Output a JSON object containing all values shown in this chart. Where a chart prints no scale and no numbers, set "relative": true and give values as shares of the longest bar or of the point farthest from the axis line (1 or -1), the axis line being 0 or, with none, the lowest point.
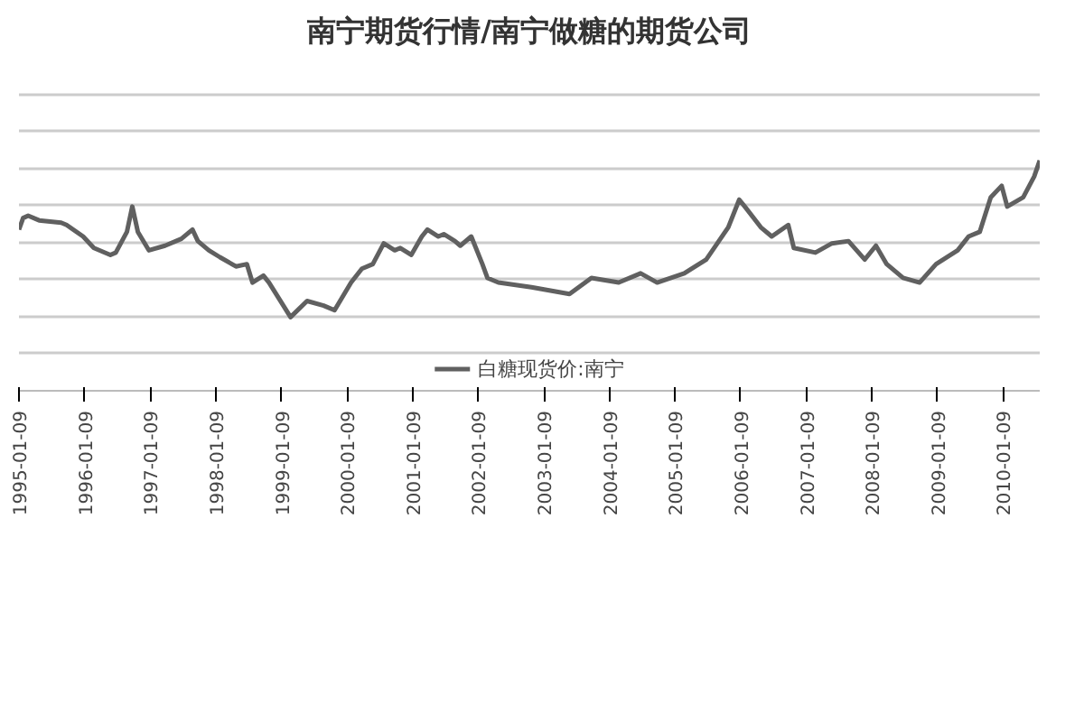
{
  "chart_data": {
    "type": "line",
    "title": "南宁期货行情/南宁做糖的期货公司",
    "relative": true,
    "x": [
      "1995-01-09",
      "1995-02",
      "1995-03",
      "1995-05",
      "1995-09",
      "1995-10",
      "1996-01",
      "1996-03",
      "1996-06",
      "1996-07",
      "1996-09",
      "1996-10",
      "1996-11",
      "1997-01",
      "1997-04",
      "1997-07",
      "1997-09",
      "1997-10",
      "1997-12",
      "1998-02",
      "1998-05",
      "1998-07",
      "1998-08",
      "1998-10",
      "1998-11",
      "1999-03",
      "1999-06",
      "1999-09",
      "1999-11",
      "2000-02",
      "2000-04",
      "2000-06",
      "2000-08",
      "2000-10",
      "2000-11",
      "2001-01",
      "2001-03",
      "2001-04",
      "2001-06",
      "2001-07",
      "2001-09",
      "2001-10",
      "2001-12",
      "2002-02",
      "2002-03",
      "2002-05",
      "2002-11",
      "2003-06",
      "2003-10",
      "2004-03",
      "2004-07",
      "2004-10",
      "2005-03",
      "2005-07",
      "2005-09",
      "2005-11",
      "2006-01",
      "2006-02",
      "2006-05",
      "2006-07",
      "2006-10",
      "2006-11",
      "2007-03",
      "2007-06",
      "2007-09",
      "2007-12",
      "2008-02",
      "2008-04",
      "2008-07",
      "2008-10",
      "2009-01",
      "2009-05",
      "2009-07",
      "2009-09",
      "2009-11",
      "2010-01",
      "2010-02",
      "2010-05",
      "2010-07",
      "2010-08"
    ],
    "series": [
      {
        "name": "白糖现货价:南宁",
        "color": "#606060",
        "values": [
          0.7,
          0.75,
          0.76,
          0.74,
          0.73,
          0.72,
          0.67,
          0.62,
          0.59,
          0.6,
          0.69,
          0.8,
          0.69,
          0.61,
          0.63,
          0.66,
          0.7,
          0.65,
          0.61,
          0.58,
          0.54,
          0.55,
          0.47,
          0.5,
          0.47,
          0.32,
          0.39,
          0.37,
          0.35,
          0.47,
          0.53,
          0.55,
          0.64,
          0.61,
          0.62,
          0.59,
          0.67,
          0.7,
          0.67,
          0.68,
          0.65,
          0.63,
          0.67,
          0.55,
          0.49,
          0.47,
          0.45,
          0.42,
          0.49,
          0.47,
          0.51,
          0.47,
          0.51,
          0.57,
          0.64,
          0.71,
          0.83,
          0.8,
          0.71,
          0.67,
          0.72,
          0.62,
          0.6,
          0.64,
          0.65,
          0.57,
          0.63,
          0.55,
          0.49,
          0.47,
          0.55,
          0.61,
          0.67,
          0.69,
          0.84,
          0.89,
          0.8,
          0.84,
          0.93,
          1.0
        ]
      }
    ],
    "xlim": [
      "1995-01-09",
      "2010-08"
    ],
    "xticks": [
      "1995-01-09",
      "1996-01-09",
      "1997-01-09",
      "1998-01-09",
      "1999-01-09",
      "2000-01-09",
      "2001-01-09",
      "2002-01-09",
      "2003-01-09",
      "2004-01-09",
      "2005-01-09",
      "2006-01-09",
      "2007-01-09",
      "2008-01-09",
      "2009-01-09",
      "2010-01-09"
    ],
    "grid": "y",
    "legend": "bottom",
    "line_style": "solid",
    "marker": "none"
  }
}
